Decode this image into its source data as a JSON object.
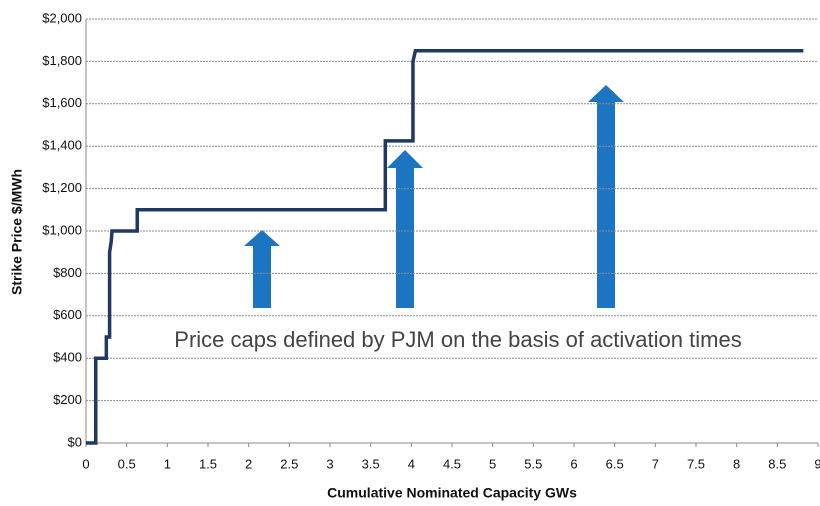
{
  "chart_data": {
    "type": "line",
    "x": [
      0,
      0.12,
      0.12,
      0.25,
      0.25,
      0.29,
      0.29,
      0.31,
      0.32,
      0.63,
      0.63,
      3.68,
      3.68,
      4.02,
      4.02,
      4.05,
      8.82
    ],
    "values": [
      0,
      0,
      400,
      400,
      500,
      500,
      900,
      950,
      1000,
      1000,
      1100,
      1100,
      1425,
      1425,
      1800,
      1850,
      1850
    ],
    "color": "#1f3864",
    "xlabel": "Cumulative Nominated Capacity GWs",
    "ylabel": "Strike Price $/MWh",
    "annotation": "Price caps defined by PJM on the basis of activation times",
    "xlim": [
      0,
      9
    ],
    "xticks": [
      0,
      0.5,
      1,
      1.5,
      2,
      2.5,
      3,
      3.5,
      4,
      4.5,
      5,
      5.5,
      6,
      6.5,
      7,
      7.5,
      8,
      8.5,
      9
    ],
    "ylim": [
      0,
      2000
    ],
    "yticks": [
      {
        "value": 0,
        "label": "$0"
      },
      {
        "value": 200,
        "label": "$200"
      },
      {
        "value": 400,
        "label": "$400"
      },
      {
        "value": 600,
        "label": "$600"
      },
      {
        "value": 800,
        "label": "$800"
      },
      {
        "value": 1000,
        "label": "$1,000"
      },
      {
        "value": 1200,
        "label": "$1,200"
      },
      {
        "value": 1400,
        "label": "$1,400"
      },
      {
        "value": 1600,
        "label": "$1,600"
      },
      {
        "value": 1800,
        "label": "$1,800"
      },
      {
        "value": 2000,
        "label": "$2,000"
      }
    ],
    "grid": true
  }
}
